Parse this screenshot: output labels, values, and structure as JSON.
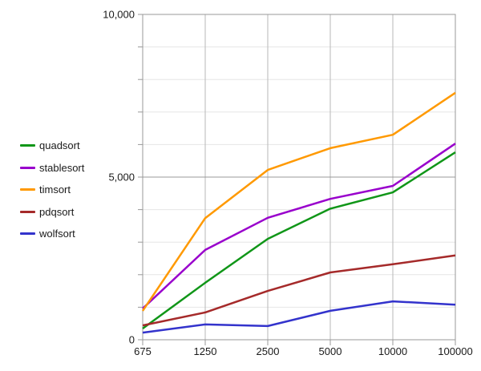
{
  "chart_data": {
    "type": "line",
    "title": "",
    "xlabel": "",
    "ylabel": "",
    "categories": [
      "675",
      "1250",
      "2500",
      "5000",
      "10000",
      "100000"
    ],
    "series": [
      {
        "name": "quadsort",
        "color": "#109618",
        "values": [
          345,
          1750,
          3100,
          4030,
          4530,
          5760
        ]
      },
      {
        "name": "stablesort",
        "color": "#9900cc",
        "values": [
          960,
          2760,
          3750,
          4330,
          4730,
          6030
        ]
      },
      {
        "name": "timsort",
        "color": "#ff9900",
        "values": [
          890,
          3740,
          5220,
          5890,
          6300,
          7590
        ]
      },
      {
        "name": "pdqsort",
        "color": "#a52a2a",
        "values": [
          440,
          840,
          1500,
          2070,
          2320,
          2590
        ]
      },
      {
        "name": "wolfsort",
        "color": "#3333cc",
        "values": [
          220,
          470,
          420,
          890,
          1180,
          1080
        ]
      }
    ],
    "ylim": [
      0,
      10000
    ],
    "y_major_ticks": [
      {
        "value": 0,
        "label": "0"
      },
      {
        "value": 5000,
        "label": "5,000"
      },
      {
        "value": 10000,
        "label": "10,000"
      }
    ],
    "y_minor_step": 1000,
    "grid": "on",
    "legend_position": "left",
    "axis_color": "#999999",
    "major_grid_color": "#999999",
    "minor_grid_color": "#e6e6e6",
    "vertical_grid_color": "#b7b7b7",
    "label_color": "#1a1a1a",
    "background_color": "#ffffff"
  }
}
